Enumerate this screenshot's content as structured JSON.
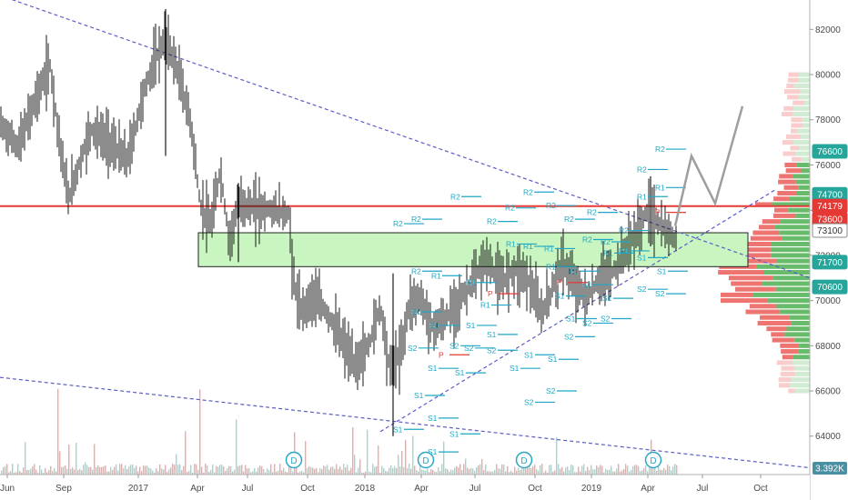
{
  "chart_data": {
    "type": "candlestick",
    "title": "",
    "xlabel": "",
    "ylabel": "",
    "x_ticks": [
      "Jun",
      "Sep",
      "2017",
      "Apr",
      "Jul",
      "Oct",
      "2018",
      "Apr",
      "Jul",
      "Oct",
      "2019",
      "Apr",
      "Jul",
      "Oct"
    ],
    "y_ticks": [
      64000,
      66000,
      68000,
      70000,
      72000,
      74000,
      76000,
      78000,
      80000,
      82000
    ],
    "ylim": [
      62300,
      83300
    ],
    "price_labels": [
      {
        "text": "76600",
        "value": 76600,
        "color": "#26a69a"
      },
      {
        "text": "74700",
        "value": 74700,
        "color": "#26a69a"
      },
      {
        "text": "74179",
        "value": 74179,
        "color": "#e53935"
      },
      {
        "text": "73600",
        "value": 73600,
        "color": "#e53935"
      },
      {
        "text": "73100",
        "value": 73100,
        "color": "#ffffff"
      },
      {
        "text": "71700",
        "value": 71700,
        "color": "#26a69a"
      },
      {
        "text": "70600",
        "value": 70600,
        "color": "#26a69a"
      }
    ],
    "volume_scale_label": "3.392K",
    "horizontal_line": {
      "value": 74179,
      "color": "#e53935"
    },
    "zone": {
      "low": 71500,
      "high": 73000,
      "color": "#c8f5c0"
    },
    "events": [
      {
        "label": "D",
        "date": "2017-09"
      },
      {
        "label": "D",
        "date": "2018-04"
      },
      {
        "label": "D",
        "date": "2018-10"
      },
      {
        "label": "D",
        "date": "2019-04"
      }
    ],
    "projection_path": [
      76400,
      74300,
      78600
    ],
    "pivot_labels": [
      "R1",
      "R2",
      "S1",
      "S2",
      "P"
    ],
    "colors": {
      "up": "#26a69a",
      "down": "#e53935",
      "trendline": "#5c5cc8",
      "pivot_r": "#e53935",
      "pivot_s": "#1ea7c5"
    }
  }
}
